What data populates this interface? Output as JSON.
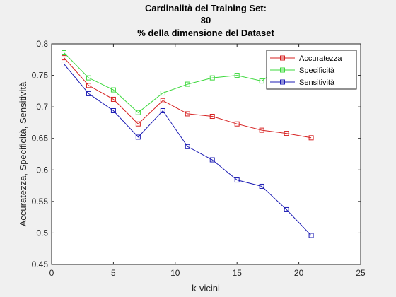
{
  "chart_data": {
    "type": "line",
    "title_lines": [
      "Cardinalità del Training Set:",
      "80",
      "% della dimensione del Dataset"
    ],
    "xlabel": "k-vicini",
    "ylabel": "Accuratezza, Specificità, Sensitività",
    "xlim": [
      0,
      25
    ],
    "ylim": [
      0.45,
      0.8
    ],
    "xticks": [
      0,
      5,
      10,
      15,
      20,
      25
    ],
    "xtick_labels": [
      "0",
      "5",
      "10",
      "15",
      "20",
      "25"
    ],
    "yticks": [
      0.45,
      0.5,
      0.55,
      0.6,
      0.65,
      0.7,
      0.75,
      0.8
    ],
    "ytick_labels": [
      "0.45",
      "0.5",
      "0.55",
      "0.6",
      "0.65",
      "0.7",
      "0.75",
      "0.8"
    ],
    "grid": false,
    "legend_position": "top-right",
    "x": [
      1,
      3,
      5,
      7,
      9,
      11,
      13,
      15,
      17,
      19,
      21
    ],
    "series": [
      {
        "name": "Accuratezza",
        "color": "#d62020",
        "marker": "square",
        "values": [
          0.778,
          0.734,
          0.712,
          0.673,
          0.71,
          0.689,
          0.685,
          0.673,
          0.663,
          0.658,
          0.651
        ]
      },
      {
        "name": "Specificità",
        "color": "#3cd83c",
        "marker": "square",
        "values": [
          0.786,
          0.746,
          0.727,
          0.691,
          0.722,
          0.736,
          0.746,
          0.75,
          0.741,
          0.77,
          0.786
        ]
      },
      {
        "name": "Sensitività",
        "color": "#1c1cb4",
        "marker": "square",
        "values": [
          0.768,
          0.721,
          0.694,
          0.652,
          0.694,
          0.637,
          0.616,
          0.584,
          0.574,
          0.537,
          0.496
        ]
      }
    ]
  }
}
